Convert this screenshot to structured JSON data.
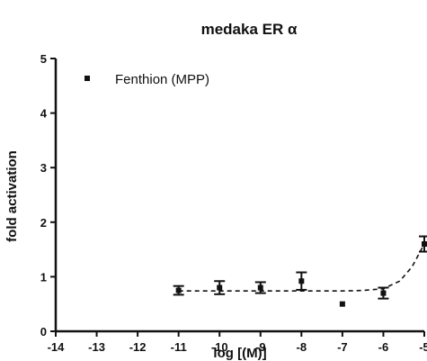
{
  "chart_data": {
    "type": "scatter",
    "title": "medaka ER α",
    "xlabel": "log [(M)]",
    "ylabel": "fold activation",
    "xlim": [
      -14,
      -5
    ],
    "ylim": [
      0,
      5
    ],
    "x_ticks": [
      "-14",
      "-13",
      "-12",
      "-11",
      "-10",
      "-9",
      "-8",
      "-7",
      "-6",
      "-5"
    ],
    "y_ticks": [
      "0",
      "1",
      "2",
      "3",
      "4",
      "5"
    ],
    "legend_position": "top-left",
    "grid": false,
    "series": [
      {
        "name": "Fenthion (MPP)",
        "color": "#111111",
        "points": [
          {
            "x": -11,
            "y": 0.75,
            "err": 0.08
          },
          {
            "x": -10,
            "y": 0.8,
            "err": 0.12
          },
          {
            "x": -9,
            "y": 0.8,
            "err": 0.1
          },
          {
            "x": -8,
            "y": 0.92,
            "err": 0.16
          },
          {
            "x": -7,
            "y": 0.5,
            "err": 0.0
          },
          {
            "x": -6,
            "y": 0.7,
            "err": 0.1
          },
          {
            "x": -5,
            "y": 1.6,
            "err": 0.14
          }
        ],
        "fit": [
          {
            "x": -11,
            "y": 0.74
          },
          {
            "x": -10,
            "y": 0.74
          },
          {
            "x": -9,
            "y": 0.74
          },
          {
            "x": -8,
            "y": 0.74
          },
          {
            "x": -7,
            "y": 0.74
          },
          {
            "x": -6.5,
            "y": 0.75
          },
          {
            "x": -6,
            "y": 0.78
          },
          {
            "x": -5.6,
            "y": 0.92
          },
          {
            "x": -5.3,
            "y": 1.18
          },
          {
            "x": -5,
            "y": 1.6
          }
        ]
      }
    ]
  }
}
